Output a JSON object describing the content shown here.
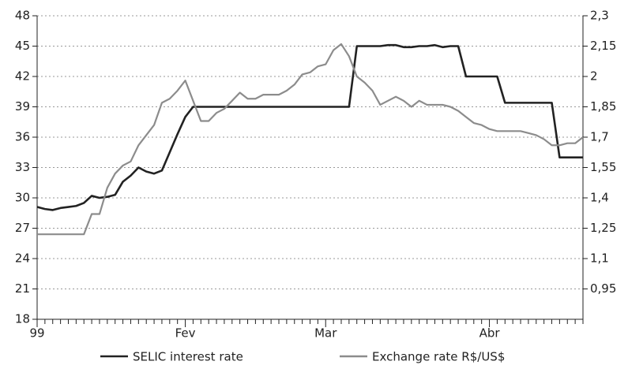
{
  "chart_data": {
    "type": "line",
    "categories": [
      "99",
      null,
      null,
      null,
      null,
      null,
      null,
      null,
      null,
      null,
      null,
      null,
      null,
      null,
      null,
      null,
      null,
      null,
      null,
      "Fev",
      null,
      null,
      null,
      null,
      null,
      null,
      null,
      null,
      null,
      null,
      null,
      null,
      null,
      null,
      null,
      null,
      null,
      "Mar",
      null,
      null,
      null,
      null,
      null,
      null,
      null,
      null,
      null,
      null,
      null,
      null,
      null,
      null,
      null,
      null,
      null,
      null,
      null,
      null,
      "Abr",
      null,
      null,
      null,
      null,
      null,
      null,
      null,
      null,
      null,
      null,
      null,
      null
    ],
    "series": [
      {
        "name": "SELIC interest rate",
        "color": "#222222",
        "axis": "y",
        "values": [
          29.1,
          28.9,
          28.8,
          29.0,
          29.1,
          29.2,
          29.5,
          30.2,
          30.0,
          30.1,
          30.3,
          31.6,
          32.2,
          33.0,
          32.6,
          32.4,
          32.7,
          34.5,
          36.3,
          38.0,
          39,
          39,
          39,
          39,
          39,
          39,
          39,
          39,
          39,
          39,
          39,
          39,
          39,
          39,
          39,
          39,
          39,
          39,
          39,
          39,
          39,
          45,
          45,
          45,
          45,
          45.1,
          45.1,
          44.9,
          44.9,
          45,
          45,
          45.1,
          44.9,
          45,
          45,
          42,
          42,
          42,
          42,
          42,
          39.4,
          39.4,
          39.4,
          39.4,
          39.4,
          39.4,
          39.4,
          34,
          34,
          34,
          34
        ]
      },
      {
        "name": "Exchange rate R$/US$",
        "color": "#8c8c8c",
        "axis": "y2",
        "values": [
          1.22,
          1.22,
          1.22,
          1.22,
          1.22,
          1.22,
          1.22,
          1.32,
          1.32,
          1.45,
          1.52,
          1.56,
          1.58,
          1.66,
          1.71,
          1.76,
          1.87,
          1.89,
          1.93,
          1.98,
          1.88,
          1.78,
          1.78,
          1.82,
          1.84,
          1.88,
          1.92,
          1.89,
          1.89,
          1.91,
          1.91,
          1.91,
          1.93,
          1.96,
          2.01,
          2.02,
          2.05,
          2.06,
          2.13,
          2.16,
          2.1,
          2.0,
          1.97,
          1.93,
          1.86,
          1.88,
          1.9,
          1.88,
          1.85,
          1.88,
          1.86,
          1.86,
          1.86,
          1.85,
          1.83,
          1.8,
          1.77,
          1.76,
          1.74,
          1.73,
          1.73,
          1.73,
          1.73,
          1.72,
          1.71,
          1.69,
          1.66,
          1.66,
          1.67,
          1.67,
          1.7
        ]
      }
    ],
    "ylim": [
      18,
      48
    ],
    "yticks": [
      18,
      21,
      24,
      27,
      30,
      33,
      36,
      39,
      42,
      45,
      48
    ],
    "y2lim": [
      0.8,
      2.3
    ],
    "y2ticks": [
      {
        "value": 0.95,
        "label": "0,95"
      },
      {
        "value": 1.1,
        "label": "1,1"
      },
      {
        "value": 1.25,
        "label": "1,25"
      },
      {
        "value": 1.4,
        "label": "1,4"
      },
      {
        "value": 1.55,
        "label": "1,55"
      },
      {
        "value": 1.7,
        "label": "1,7"
      },
      {
        "value": 1.85,
        "label": "1,85"
      },
      {
        "value": 2,
        "label": "2"
      },
      {
        "value": 2.15,
        "label": "2,15"
      },
      {
        "value": 2.3,
        "label": "2,3"
      }
    ],
    "grid": true,
    "legend": "bottom"
  }
}
